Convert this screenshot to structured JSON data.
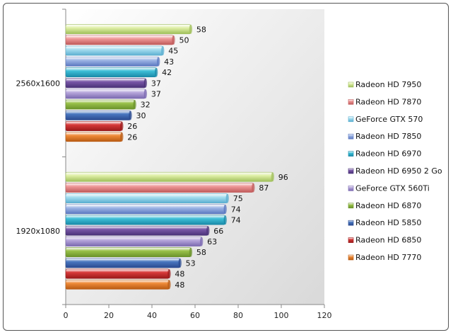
{
  "chart_data": {
    "type": "bar",
    "orientation": "horizontal",
    "categories": [
      "1920x1080",
      "2560x1600"
    ],
    "xlim": [
      0,
      120
    ],
    "xticks": [
      0,
      20,
      40,
      60,
      80,
      100,
      120
    ],
    "grid": false,
    "legend_position": "right",
    "series": [
      {
        "name": "Radeon HD 7950",
        "values": [
          96,
          58
        ],
        "color": "#e0f0a8",
        "edge": "#9fbf5a"
      },
      {
        "name": "Radeon HD 7870",
        "values": [
          87,
          50
        ],
        "color": "#f09a9a",
        "edge": "#c05a5a"
      },
      {
        "name": "GeForce GTX 570",
        "values": [
          75,
          45
        ],
        "color": "#a8dff0",
        "edge": "#5aaed0"
      },
      {
        "name": "Radeon HD 7850",
        "values": [
          74,
          43
        ],
        "color": "#9fb6e6",
        "edge": "#5a78c0"
      },
      {
        "name": "Radeon HD 6970",
        "values": [
          74,
          42
        ],
        "color": "#3fc0d8",
        "edge": "#1a8aa8"
      },
      {
        "name": "Radeon HD 6950 2 Go",
        "values": [
          66,
          37
        ],
        "color": "#7a58a8",
        "edge": "#4a3278"
      },
      {
        "name": "GeForce GTX 560Ti",
        "values": [
          63,
          37
        ],
        "color": "#b8a8dc",
        "edge": "#7a68b0"
      },
      {
        "name": "Radeon HD 6870",
        "values": [
          58,
          32
        ],
        "color": "#9ac24a",
        "edge": "#6a922a"
      },
      {
        "name": "Radeon HD 5850",
        "values": [
          53,
          30
        ],
        "color": "#4a78c0",
        "edge": "#2a4a90"
      },
      {
        "name": "Radeon HD 6850",
        "values": [
          48,
          26
        ],
        "color": "#d83a3a",
        "edge": "#9a1a1a"
      },
      {
        "name": "Radeon HD 7770",
        "values": [
          48,
          26
        ],
        "color": "#f08c3a",
        "edge": "#b85a12"
      }
    ]
  }
}
